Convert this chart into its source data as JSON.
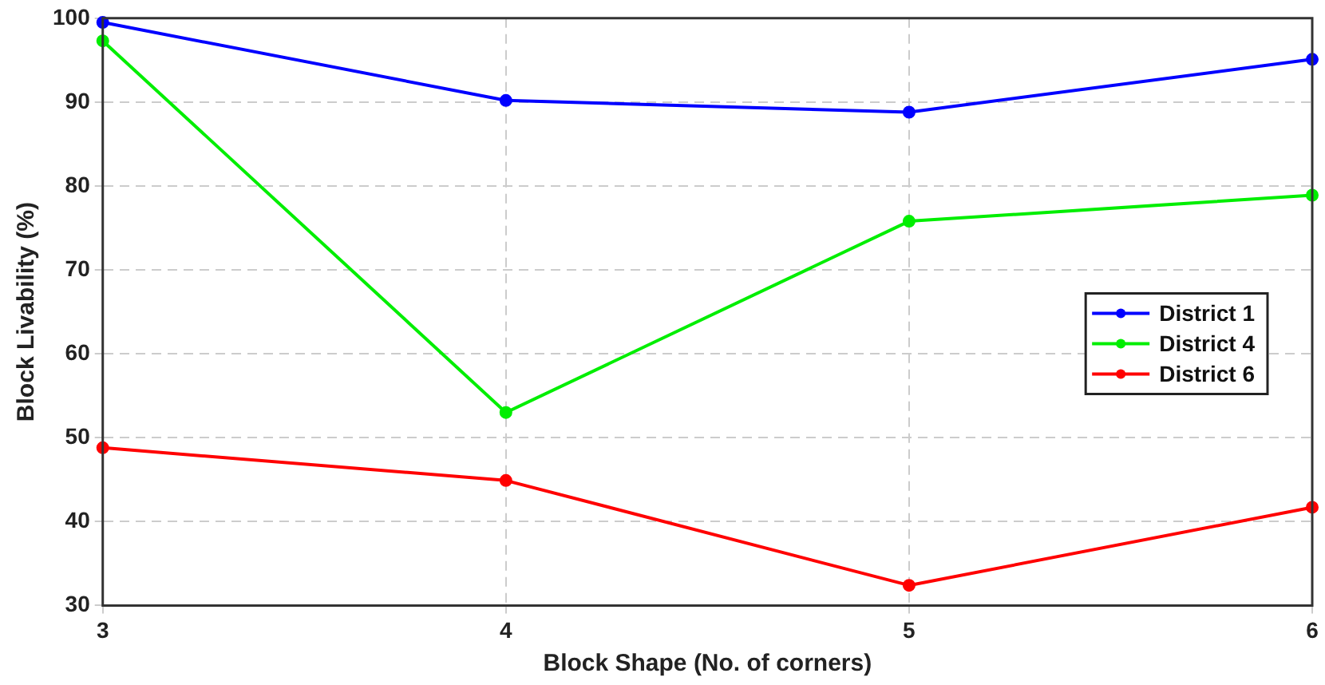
{
  "chart_data": {
    "type": "line",
    "xlabel": "Block Shape (No. of corners)",
    "ylabel": "Block Livability (%)",
    "x": [
      3,
      4,
      5,
      6
    ],
    "xlim": [
      3,
      6
    ],
    "xticks": [
      3,
      4,
      5,
      6
    ],
    "ylim": [
      30,
      100
    ],
    "yticks": [
      30,
      40,
      50,
      60,
      70,
      80,
      90,
      100
    ],
    "grid": true,
    "legend": "right",
    "marker": "circle",
    "line_style": "solid",
    "series": [
      {
        "name": "District 1",
        "color": "#0000ff",
        "values": [
          99.5,
          90.2,
          88.8,
          95.1
        ]
      },
      {
        "name": "District 4",
        "color": "#00ee00",
        "values": [
          97.3,
          53,
          75.8,
          78.9
        ]
      },
      {
        "name": "District 6",
        "color": "#ff0000",
        "values": [
          48.8,
          44.9,
          32.4,
          41.7
        ]
      }
    ]
  }
}
